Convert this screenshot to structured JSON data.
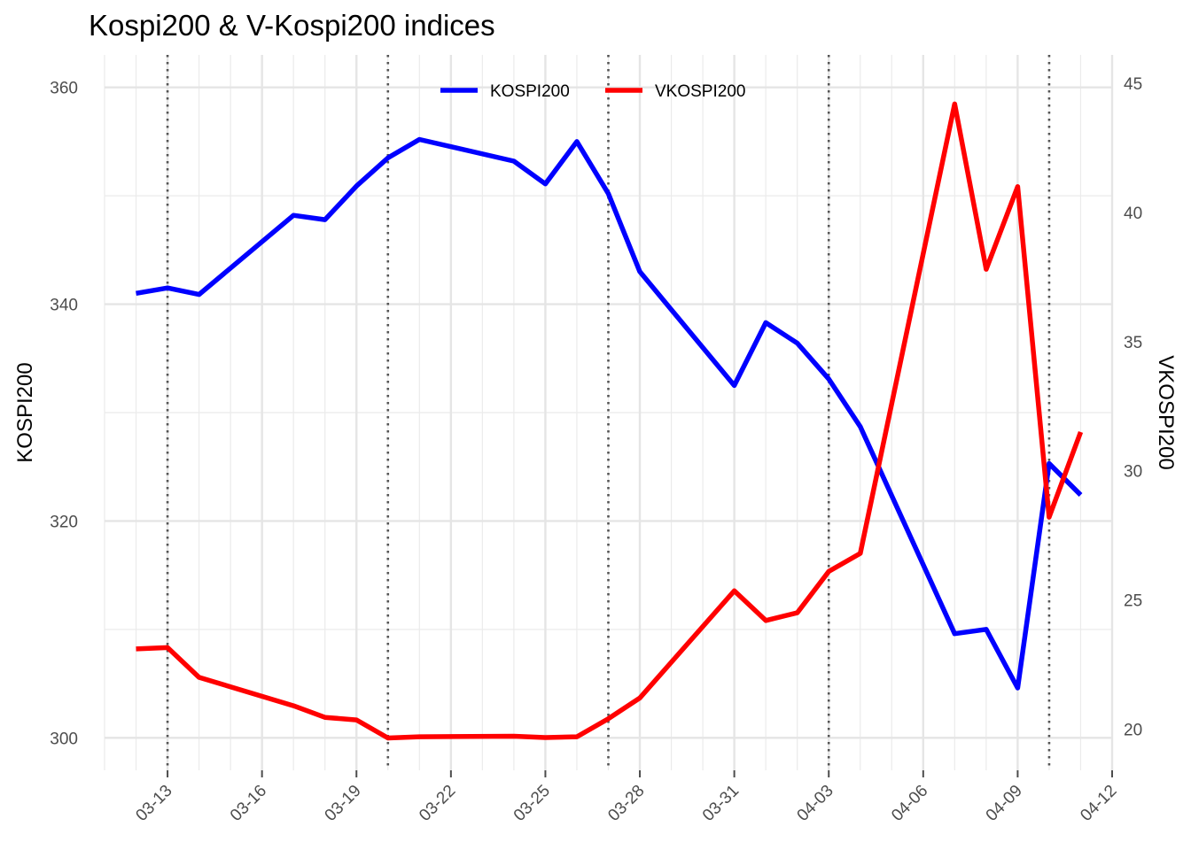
{
  "chart_data": {
    "type": "line",
    "title": "Kospi200 & V-Kospi200 indices",
    "ylabel": "KOSPI200",
    "y2label": "VKOSPI200",
    "ylim": [
      297,
      363
    ],
    "y2lim": [
      18.4,
      46.1
    ],
    "y_ticks": [
      300,
      320,
      340,
      360
    ],
    "y_tick_labels": [
      "300",
      "320",
      "340",
      "360"
    ],
    "y2_ticks": [
      20,
      25,
      30,
      35,
      40,
      45
    ],
    "y2_tick_labels": [
      "20",
      "25",
      "30",
      "35",
      "40",
      "45"
    ],
    "x_ticks": [
      "2020-03-13",
      "2020-03-16",
      "2020-03-19",
      "2020-03-22",
      "2020-03-25",
      "2020-03-28",
      "2020-03-31",
      "2020-04-03",
      "2020-04-06",
      "2020-04-09",
      "2020-04-12"
    ],
    "x_tick_labels": [
      "03-13",
      "03-16",
      "03-19",
      "03-22",
      "03-25",
      "03-28",
      "03-31",
      "04-03",
      "04-06",
      "04-09",
      "04-12"
    ],
    "x_range": [
      "2020-03-11",
      "2020-04-12"
    ],
    "vlines": [
      "2020-03-13",
      "2020-03-20",
      "2020-03-27",
      "2020-04-03",
      "2020-04-10"
    ],
    "grid": true,
    "legend_position": "top",
    "series": [
      {
        "name": "KOSPI200",
        "color": "#0000ff",
        "axis": "left",
        "points": [
          [
            "2020-03-12",
            341.0
          ],
          [
            "2020-03-13",
            341.5
          ],
          [
            "2020-03-14",
            340.9
          ],
          [
            "2020-03-17",
            348.2
          ],
          [
            "2020-03-18",
            347.8
          ],
          [
            "2020-03-19",
            350.9
          ],
          [
            "2020-03-20",
            353.5
          ],
          [
            "2020-03-21",
            355.2
          ],
          [
            "2020-03-24",
            353.2
          ],
          [
            "2020-03-25",
            351.1
          ],
          [
            "2020-03-26",
            355.0
          ],
          [
            "2020-03-27",
            350.2
          ],
          [
            "2020-03-28",
            343.0
          ],
          [
            "2020-03-31",
            332.5
          ],
          [
            "2020-04-01",
            338.3
          ],
          [
            "2020-04-02",
            336.4
          ],
          [
            "2020-04-03",
            333.1
          ],
          [
            "2020-04-04",
            328.7
          ],
          [
            "2020-04-07",
            309.6
          ],
          [
            "2020-04-08",
            310.0
          ],
          [
            "2020-04-09",
            304.6
          ],
          [
            "2020-04-10",
            325.3
          ],
          [
            "2020-04-11",
            322.4
          ]
        ]
      },
      {
        "name": "VKOSPI200",
        "color": "#ff0000",
        "axis": "right",
        "points": [
          [
            "2020-03-12",
            23.1
          ],
          [
            "2020-03-13",
            23.15
          ],
          [
            "2020-03-14",
            22.0
          ],
          [
            "2020-03-17",
            20.9
          ],
          [
            "2020-03-18",
            20.45
          ],
          [
            "2020-03-19",
            20.35
          ],
          [
            "2020-03-20",
            19.65
          ],
          [
            "2020-03-21",
            19.7
          ],
          [
            "2020-03-24",
            19.72
          ],
          [
            "2020-03-25",
            19.67
          ],
          [
            "2020-03-26",
            19.7
          ],
          [
            "2020-03-27",
            20.4
          ],
          [
            "2020-03-28",
            21.2
          ],
          [
            "2020-03-31",
            25.35
          ],
          [
            "2020-04-01",
            24.2
          ],
          [
            "2020-04-02",
            24.5
          ],
          [
            "2020-04-03",
            26.1
          ],
          [
            "2020-04-04",
            26.8
          ],
          [
            "2020-04-07",
            44.2
          ],
          [
            "2020-04-08",
            37.8
          ],
          [
            "2020-04-09",
            41.0
          ],
          [
            "2020-04-10",
            28.2
          ],
          [
            "2020-04-11",
            31.5
          ]
        ]
      }
    ]
  }
}
